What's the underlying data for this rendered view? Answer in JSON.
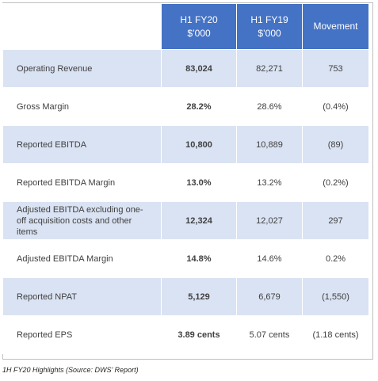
{
  "table": {
    "header": [
      [
        "H1 FY20",
        "$’000"
      ],
      [
        "H1 FY19",
        "$’000"
      ],
      [
        "Movement"
      ]
    ],
    "rows": [
      [
        "Operating Revenue",
        "83,024",
        "82,271",
        "753"
      ],
      [
        "Gross Margin",
        "28.2%",
        "28.6%",
        "(0.4%)"
      ],
      [
        "Reported EBITDA",
        "10,800",
        "10,889",
        "(89)"
      ],
      [
        "Reported EBITDA Margin",
        "13.0%",
        "13.2%",
        "(0.2%)"
      ],
      [
        "Adjusted EBITDA excluding one-off acquisition costs and other items",
        "12,324",
        "12,027",
        "297"
      ],
      [
        "Adjusted EBITDA Margin",
        "14.8%",
        "14.6%",
        "0.2%"
      ],
      [
        "Reported NPAT",
        "5,129",
        "6,679",
        "(1,550)"
      ],
      [
        "Reported EPS",
        "3.89 cents",
        "5.07 cents",
        "(1.18 cents)"
      ]
    ]
  },
  "caption": "1H FY20 Highlights (Source: DWS’ Report)"
}
